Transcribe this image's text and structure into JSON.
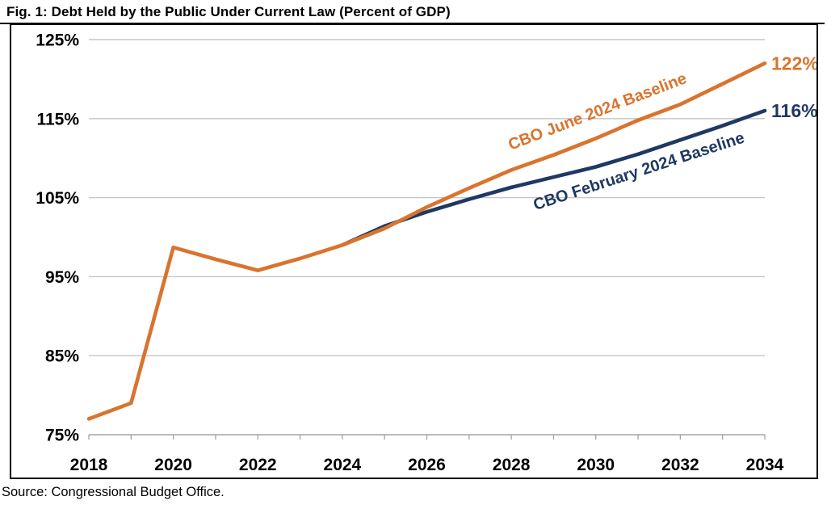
{
  "figure": {
    "title": "Fig. 1: Debt Held by the Public Under Current Law (Percent of GDP)",
    "source": "Source: Congressional Budget Office."
  },
  "colors": {
    "june_orange": "#D9742E",
    "feb_blue": "#1F3864",
    "gridline": "#C6C6C6",
    "axis_line": "#A3A3A3",
    "text": "#000000",
    "background": "#FFFFFF"
  },
  "chart_data": {
    "type": "line",
    "title": "Fig. 1: Debt Held by the Public Under Current Law (Percent of GDP)",
    "xlabel": "",
    "ylabel": "",
    "xlim": [
      2018,
      2034
    ],
    "ylim": [
      75,
      125
    ],
    "grid": true,
    "legend_position": "inline-rotated-labels",
    "x_tick_labels": [
      "2018",
      "2020",
      "2022",
      "2024",
      "2026",
      "2028",
      "2030",
      "2032",
      "2034"
    ],
    "x_tick_values": [
      2018,
      2020,
      2022,
      2024,
      2026,
      2028,
      2030,
      2032,
      2034
    ],
    "x_minor_tick_step_years": 1,
    "y_ticks": [
      {
        "value": 75,
        "label": "75%"
      },
      {
        "value": 85,
        "label": "85%"
      },
      {
        "value": 95,
        "label": "95%"
      },
      {
        "value": 105,
        "label": "105%"
      },
      {
        "value": 115,
        "label": "115%"
      },
      {
        "value": 125,
        "label": "125%"
      }
    ],
    "series": [
      {
        "name": "CBO February 2024 Baseline",
        "color": "#1F3864",
        "end_label": "116%",
        "end_value": 116,
        "x": [
          2024,
          2025,
          2026,
          2027,
          2028,
          2029,
          2030,
          2031,
          2032,
          2033,
          2034
        ],
        "values": [
          99.0,
          101.4,
          103.2,
          104.8,
          106.3,
          107.6,
          108.9,
          110.5,
          112.3,
          114.1,
          116.0
        ]
      },
      {
        "name": "CBO June 2024 Baseline",
        "color": "#D9742E",
        "end_label": "122%",
        "end_value": 122,
        "x": [
          2018,
          2019,
          2020,
          2021,
          2022,
          2023,
          2024,
          2025,
          2026,
          2027,
          2028,
          2029,
          2030,
          2031,
          2032,
          2033,
          2034
        ],
        "values": [
          77.0,
          79.0,
          98.7,
          97.2,
          95.8,
          97.3,
          99.0,
          101.1,
          103.8,
          106.2,
          108.5,
          110.4,
          112.5,
          114.8,
          116.8,
          119.4,
          122.0
        ]
      }
    ]
  }
}
